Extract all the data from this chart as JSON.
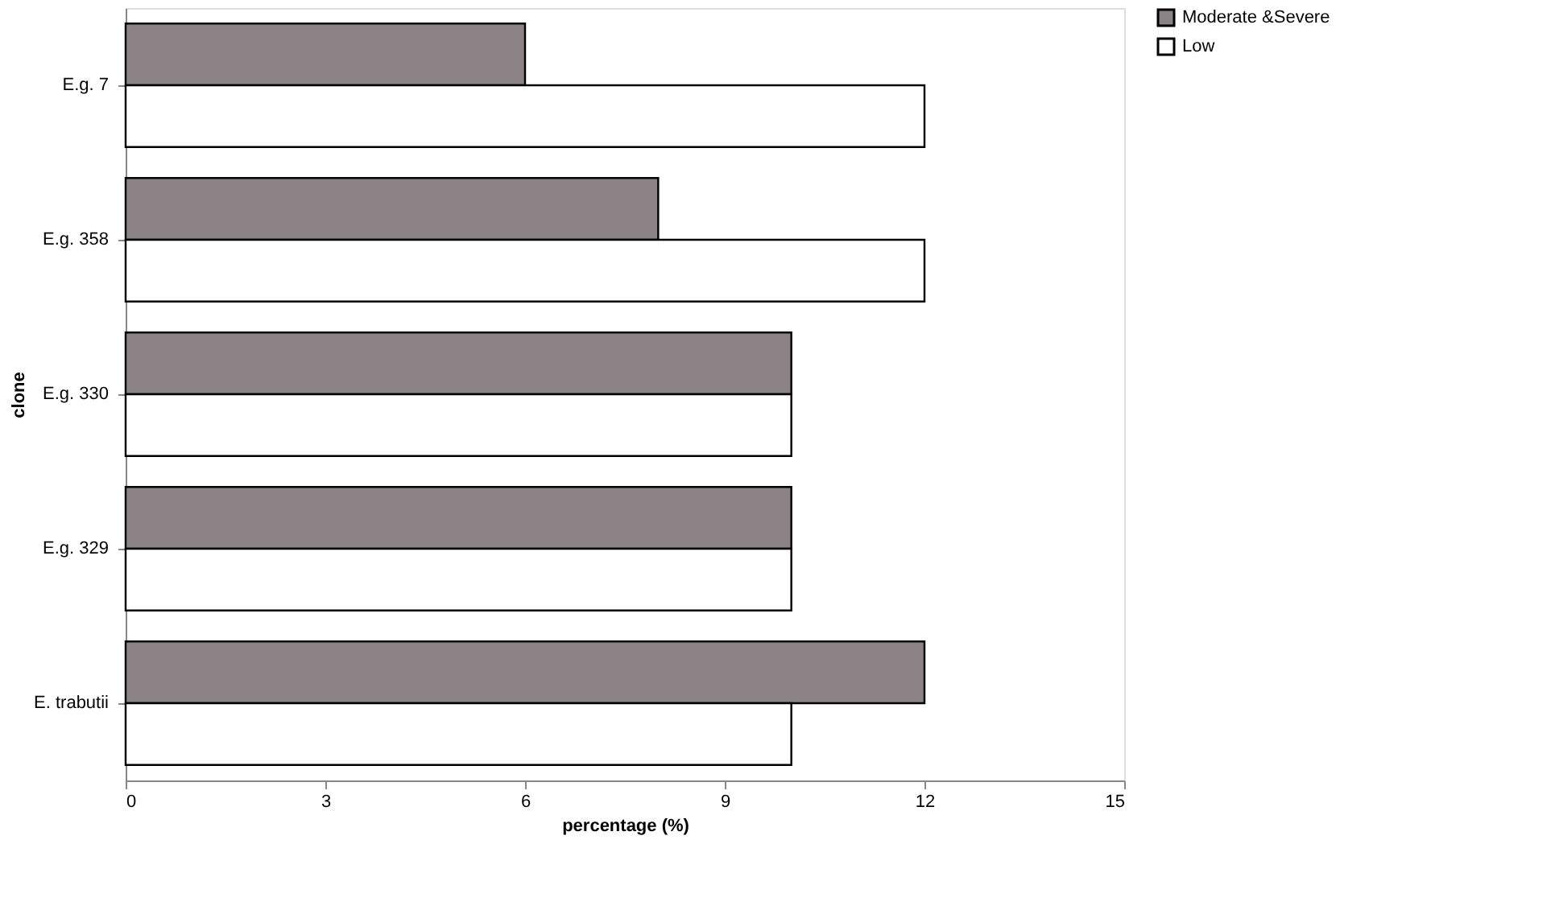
{
  "chart_data": {
    "type": "bar",
    "orientation": "horizontal",
    "xlabel": "percentage (%)",
    "ylabel": "clone",
    "categories": [
      "E.g. 7",
      "E.g. 358",
      "E.g. 330",
      "E.g. 329",
      "E. trabutii"
    ],
    "series": [
      {
        "name": "Moderate &Severe",
        "color": "#8a8284",
        "values": [
          6,
          8,
          10,
          10,
          12
        ]
      },
      {
        "name": "Low",
        "color": "#ffffff",
        "values": [
          12,
          12,
          10,
          10,
          10
        ]
      }
    ],
    "xlim": [
      0,
      15
    ],
    "xticks": [
      0,
      3,
      6,
      9,
      12,
      15
    ],
    "grid": false,
    "legend": "right"
  }
}
